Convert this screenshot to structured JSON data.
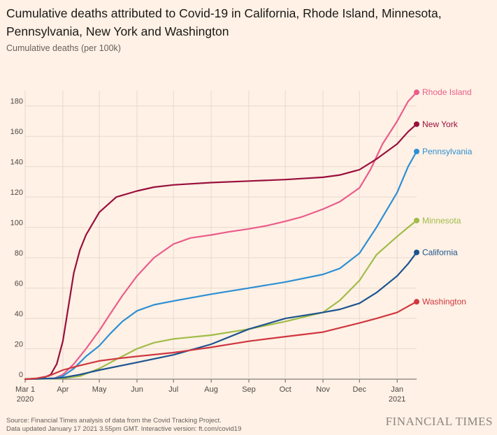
{
  "header": {
    "title": "Cumulative deaths attributed to Covid-19 in California, Rhode Island, Minnesota, Pennsylvania, New York and Washington",
    "subtitle": "Cumulative deaths (per 100k)"
  },
  "footer": {
    "source_line1": "Source: Financial Times analysis of data from the Covid Tracking Project.",
    "source_line2": "Data updated January 17 2021 3.55pm GMT. Interactive version: ft.com/covid19",
    "brand": "FINANCIAL TIMES"
  },
  "chart_data": {
    "type": "line",
    "title": "Cumulative deaths attributed to Covid-19 in California, Rhode Island, Minnesota, Pennsylvania, New York and Washington",
    "ylabel": "Cumulative deaths (per 100k)",
    "ylim": [
      0,
      190
    ],
    "xlim": [
      "2020-03-01",
      "2021-01-17"
    ],
    "yticks": [
      0,
      20,
      40,
      60,
      80,
      100,
      120,
      140,
      160,
      180
    ],
    "xticks": [
      {
        "date": "2020-03-01",
        "label": "Mar 1",
        "sublabel": "2020"
      },
      {
        "date": "2020-04-01",
        "label": "Apr",
        "sublabel": ""
      },
      {
        "date": "2020-05-01",
        "label": "May",
        "sublabel": ""
      },
      {
        "date": "2020-06-01",
        "label": "Jun",
        "sublabel": ""
      },
      {
        "date": "2020-07-01",
        "label": "Jul",
        "sublabel": ""
      },
      {
        "date": "2020-08-01",
        "label": "Aug",
        "sublabel": ""
      },
      {
        "date": "2020-09-01",
        "label": "Sep",
        "sublabel": ""
      },
      {
        "date": "2020-10-01",
        "label": "Oct",
        "sublabel": ""
      },
      {
        "date": "2020-11-01",
        "label": "Nov",
        "sublabel": ""
      },
      {
        "date": "2020-12-01",
        "label": "Dec",
        "sublabel": ""
      },
      {
        "date": "2021-01-01",
        "label": "Jan",
        "sublabel": "2021"
      }
    ],
    "grid": true,
    "series": [
      {
        "name": "Rhode Island",
        "color": "#e95d8c",
        "points": [
          [
            "2020-03-01",
            0
          ],
          [
            "2020-03-25",
            0.5
          ],
          [
            "2020-04-01",
            3
          ],
          [
            "2020-04-10",
            10
          ],
          [
            "2020-04-20",
            20
          ],
          [
            "2020-05-01",
            32
          ],
          [
            "2020-05-10",
            43
          ],
          [
            "2020-05-20",
            55
          ],
          [
            "2020-06-01",
            68
          ],
          [
            "2020-06-15",
            80
          ],
          [
            "2020-07-01",
            89
          ],
          [
            "2020-07-15",
            93
          ],
          [
            "2020-08-01",
            95
          ],
          [
            "2020-08-15",
            97
          ],
          [
            "2020-09-01",
            99
          ],
          [
            "2020-09-15",
            101
          ],
          [
            "2020-10-01",
            104
          ],
          [
            "2020-10-15",
            107
          ],
          [
            "2020-11-01",
            112
          ],
          [
            "2020-11-15",
            117
          ],
          [
            "2020-12-01",
            126
          ],
          [
            "2020-12-10",
            138
          ],
          [
            "2020-12-20",
            155
          ],
          [
            "2021-01-01",
            170
          ],
          [
            "2021-01-10",
            183
          ],
          [
            "2021-01-17",
            189
          ]
        ]
      },
      {
        "name": "New York",
        "color": "#990f3d",
        "points": [
          [
            "2020-03-01",
            0
          ],
          [
            "2020-03-15",
            0.5
          ],
          [
            "2020-03-22",
            3
          ],
          [
            "2020-03-27",
            10
          ],
          [
            "2020-04-01",
            25
          ],
          [
            "2020-04-05",
            45
          ],
          [
            "2020-04-10",
            70
          ],
          [
            "2020-04-15",
            85
          ],
          [
            "2020-04-20",
            95
          ],
          [
            "2020-05-01",
            110
          ],
          [
            "2020-05-15",
            120
          ],
          [
            "2020-06-01",
            124
          ],
          [
            "2020-06-15",
            126.5
          ],
          [
            "2020-07-01",
            128
          ],
          [
            "2020-08-01",
            129.5
          ],
          [
            "2020-09-01",
            130.5
          ],
          [
            "2020-10-01",
            131.5
          ],
          [
            "2020-11-01",
            133
          ],
          [
            "2020-11-15",
            134.5
          ],
          [
            "2020-12-01",
            138
          ],
          [
            "2020-12-15",
            145
          ],
          [
            "2021-01-01",
            155
          ],
          [
            "2021-01-10",
            163
          ],
          [
            "2021-01-17",
            168
          ]
        ]
      },
      {
        "name": "Pennsylvania",
        "color": "#2d8fd4",
        "points": [
          [
            "2020-03-01",
            0
          ],
          [
            "2020-03-25",
            0.5
          ],
          [
            "2020-04-01",
            2
          ],
          [
            "2020-04-10",
            7
          ],
          [
            "2020-04-20",
            15
          ],
          [
            "2020-05-01",
            22
          ],
          [
            "2020-05-10",
            30
          ],
          [
            "2020-05-20",
            38
          ],
          [
            "2020-06-01",
            45
          ],
          [
            "2020-06-15",
            49
          ],
          [
            "2020-07-01",
            51.5
          ],
          [
            "2020-08-01",
            56
          ],
          [
            "2020-09-01",
            60
          ],
          [
            "2020-10-01",
            64
          ],
          [
            "2020-11-01",
            69
          ],
          [
            "2020-11-15",
            73
          ],
          [
            "2020-12-01",
            83
          ],
          [
            "2020-12-15",
            100
          ],
          [
            "2021-01-01",
            123
          ],
          [
            "2021-01-10",
            140
          ],
          [
            "2021-01-17",
            150
          ]
        ]
      },
      {
        "name": "Minnesota",
        "color": "#a0bc48",
        "points": [
          [
            "2020-03-01",
            0
          ],
          [
            "2020-04-01",
            0.5
          ],
          [
            "2020-04-15",
            2
          ],
          [
            "2020-05-01",
            7
          ],
          [
            "2020-05-15",
            13
          ],
          [
            "2020-06-01",
            20
          ],
          [
            "2020-06-15",
            24
          ],
          [
            "2020-07-01",
            26.5
          ],
          [
            "2020-08-01",
            29
          ],
          [
            "2020-09-01",
            33
          ],
          [
            "2020-10-01",
            38
          ],
          [
            "2020-11-01",
            44
          ],
          [
            "2020-11-15",
            52
          ],
          [
            "2020-12-01",
            65
          ],
          [
            "2020-12-15",
            82
          ],
          [
            "2021-01-01",
            94
          ],
          [
            "2021-01-10",
            100
          ],
          [
            "2021-01-17",
            104.5
          ]
        ]
      },
      {
        "name": "California",
        "color": "#1d5390",
        "points": [
          [
            "2020-03-01",
            0
          ],
          [
            "2020-03-25",
            0.5
          ],
          [
            "2020-04-01",
            1
          ],
          [
            "2020-04-15",
            3
          ],
          [
            "2020-05-01",
            6
          ],
          [
            "2020-06-01",
            11
          ],
          [
            "2020-07-01",
            16
          ],
          [
            "2020-08-01",
            23
          ],
          [
            "2020-09-01",
            33
          ],
          [
            "2020-10-01",
            40
          ],
          [
            "2020-11-01",
            44
          ],
          [
            "2020-11-15",
            46
          ],
          [
            "2020-12-01",
            50
          ],
          [
            "2020-12-15",
            57
          ],
          [
            "2021-01-01",
            68
          ],
          [
            "2021-01-10",
            76
          ],
          [
            "2021-01-17",
            83.5
          ]
        ]
      },
      {
        "name": "Washington",
        "color": "#d03740",
        "points": [
          [
            "2020-03-01",
            0
          ],
          [
            "2020-03-10",
            0.5
          ],
          [
            "2020-03-20",
            2
          ],
          [
            "2020-04-01",
            6
          ],
          [
            "2020-04-15",
            9
          ],
          [
            "2020-05-01",
            12
          ],
          [
            "2020-05-15",
            13.5
          ],
          [
            "2020-06-01",
            15
          ],
          [
            "2020-07-01",
            17.5
          ],
          [
            "2020-08-01",
            21
          ],
          [
            "2020-09-01",
            25
          ],
          [
            "2020-10-01",
            28
          ],
          [
            "2020-11-01",
            31
          ],
          [
            "2020-12-01",
            37
          ],
          [
            "2020-12-15",
            40
          ],
          [
            "2021-01-01",
            44
          ],
          [
            "2021-01-10",
            48
          ],
          [
            "2021-01-17",
            51
          ]
        ]
      }
    ]
  }
}
